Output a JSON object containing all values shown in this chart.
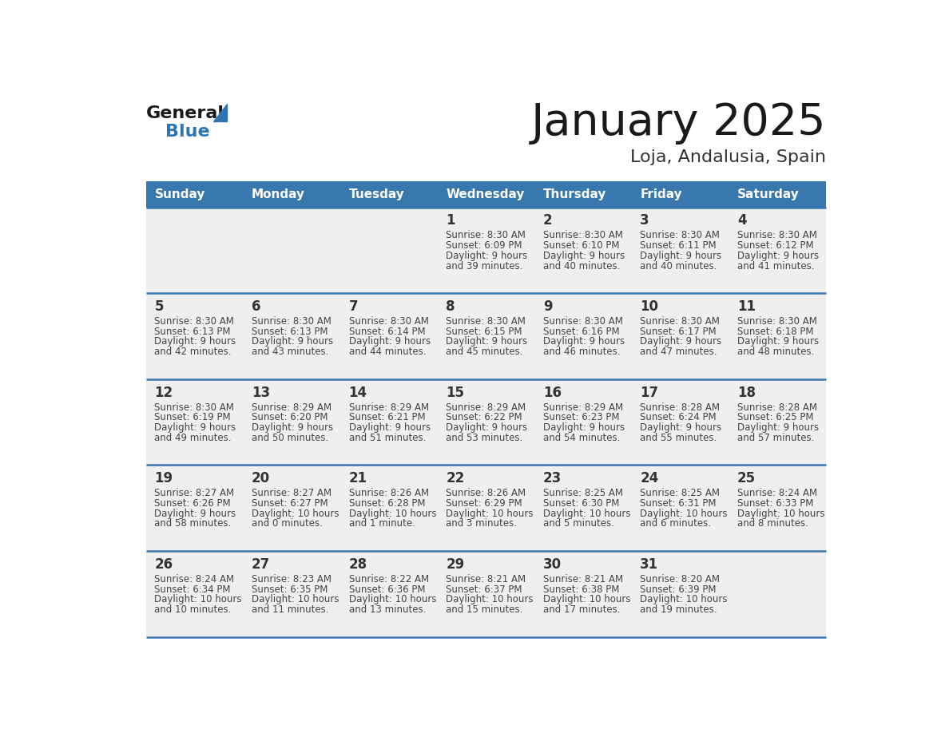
{
  "title": "January 2025",
  "subtitle": "Loja, Andalusia, Spain",
  "header_color": "#3878ae",
  "header_text_color": "#FFFFFF",
  "day_names": [
    "Sunday",
    "Monday",
    "Tuesday",
    "Wednesday",
    "Thursday",
    "Friday",
    "Saturday"
  ],
  "background_color": "#FFFFFF",
  "cell_bg": "#EFEFEF",
  "divider_color": "#3878ae",
  "text_color": "#444444",
  "num_color": "#333333",
  "title_color": "#1a1a1a",
  "subtitle_color": "#333333",
  "logo_general_color": "#1a1a1a",
  "logo_blue_color": "#2E75B6",
  "weeks": [
    [
      {
        "day": null,
        "sunrise": null,
        "sunset": null,
        "daylight": null
      },
      {
        "day": null,
        "sunrise": null,
        "sunset": null,
        "daylight": null
      },
      {
        "day": null,
        "sunrise": null,
        "sunset": null,
        "daylight": null
      },
      {
        "day": 1,
        "sunrise": "8:30 AM",
        "sunset": "6:09 PM",
        "daylight_h": "9 hours",
        "daylight_m": "and 39 minutes."
      },
      {
        "day": 2,
        "sunrise": "8:30 AM",
        "sunset": "6:10 PM",
        "daylight_h": "9 hours",
        "daylight_m": "and 40 minutes."
      },
      {
        "day": 3,
        "sunrise": "8:30 AM",
        "sunset": "6:11 PM",
        "daylight_h": "9 hours",
        "daylight_m": "and 40 minutes."
      },
      {
        "day": 4,
        "sunrise": "8:30 AM",
        "sunset": "6:12 PM",
        "daylight_h": "9 hours",
        "daylight_m": "and 41 minutes."
      }
    ],
    [
      {
        "day": 5,
        "sunrise": "8:30 AM",
        "sunset": "6:13 PM",
        "daylight_h": "9 hours",
        "daylight_m": "and 42 minutes."
      },
      {
        "day": 6,
        "sunrise": "8:30 AM",
        "sunset": "6:13 PM",
        "daylight_h": "9 hours",
        "daylight_m": "and 43 minutes."
      },
      {
        "day": 7,
        "sunrise": "8:30 AM",
        "sunset": "6:14 PM",
        "daylight_h": "9 hours",
        "daylight_m": "and 44 minutes."
      },
      {
        "day": 8,
        "sunrise": "8:30 AM",
        "sunset": "6:15 PM",
        "daylight_h": "9 hours",
        "daylight_m": "and 45 minutes."
      },
      {
        "day": 9,
        "sunrise": "8:30 AM",
        "sunset": "6:16 PM",
        "daylight_h": "9 hours",
        "daylight_m": "and 46 minutes."
      },
      {
        "day": 10,
        "sunrise": "8:30 AM",
        "sunset": "6:17 PM",
        "daylight_h": "9 hours",
        "daylight_m": "and 47 minutes."
      },
      {
        "day": 11,
        "sunrise": "8:30 AM",
        "sunset": "6:18 PM",
        "daylight_h": "9 hours",
        "daylight_m": "and 48 minutes."
      }
    ],
    [
      {
        "day": 12,
        "sunrise": "8:30 AM",
        "sunset": "6:19 PM",
        "daylight_h": "9 hours",
        "daylight_m": "and 49 minutes."
      },
      {
        "day": 13,
        "sunrise": "8:29 AM",
        "sunset": "6:20 PM",
        "daylight_h": "9 hours",
        "daylight_m": "and 50 minutes."
      },
      {
        "day": 14,
        "sunrise": "8:29 AM",
        "sunset": "6:21 PM",
        "daylight_h": "9 hours",
        "daylight_m": "and 51 minutes."
      },
      {
        "day": 15,
        "sunrise": "8:29 AM",
        "sunset": "6:22 PM",
        "daylight_h": "9 hours",
        "daylight_m": "and 53 minutes."
      },
      {
        "day": 16,
        "sunrise": "8:29 AM",
        "sunset": "6:23 PM",
        "daylight_h": "9 hours",
        "daylight_m": "and 54 minutes."
      },
      {
        "day": 17,
        "sunrise": "8:28 AM",
        "sunset": "6:24 PM",
        "daylight_h": "9 hours",
        "daylight_m": "and 55 minutes."
      },
      {
        "day": 18,
        "sunrise": "8:28 AM",
        "sunset": "6:25 PM",
        "daylight_h": "9 hours",
        "daylight_m": "and 57 minutes."
      }
    ],
    [
      {
        "day": 19,
        "sunrise": "8:27 AM",
        "sunset": "6:26 PM",
        "daylight_h": "9 hours",
        "daylight_m": "and 58 minutes."
      },
      {
        "day": 20,
        "sunrise": "8:27 AM",
        "sunset": "6:27 PM",
        "daylight_h": "10 hours",
        "daylight_m": "and 0 minutes."
      },
      {
        "day": 21,
        "sunrise": "8:26 AM",
        "sunset": "6:28 PM",
        "daylight_h": "10 hours",
        "daylight_m": "and 1 minute."
      },
      {
        "day": 22,
        "sunrise": "8:26 AM",
        "sunset": "6:29 PM",
        "daylight_h": "10 hours",
        "daylight_m": "and 3 minutes."
      },
      {
        "day": 23,
        "sunrise": "8:25 AM",
        "sunset": "6:30 PM",
        "daylight_h": "10 hours",
        "daylight_m": "and 5 minutes."
      },
      {
        "day": 24,
        "sunrise": "8:25 AM",
        "sunset": "6:31 PM",
        "daylight_h": "10 hours",
        "daylight_m": "and 6 minutes."
      },
      {
        "day": 25,
        "sunrise": "8:24 AM",
        "sunset": "6:33 PM",
        "daylight_h": "10 hours",
        "daylight_m": "and 8 minutes."
      }
    ],
    [
      {
        "day": 26,
        "sunrise": "8:24 AM",
        "sunset": "6:34 PM",
        "daylight_h": "10 hours",
        "daylight_m": "and 10 minutes."
      },
      {
        "day": 27,
        "sunrise": "8:23 AM",
        "sunset": "6:35 PM",
        "daylight_h": "10 hours",
        "daylight_m": "and 11 minutes."
      },
      {
        "day": 28,
        "sunrise": "8:22 AM",
        "sunset": "6:36 PM",
        "daylight_h": "10 hours",
        "daylight_m": "and 13 minutes."
      },
      {
        "day": 29,
        "sunrise": "8:21 AM",
        "sunset": "6:37 PM",
        "daylight_h": "10 hours",
        "daylight_m": "and 15 minutes."
      },
      {
        "day": 30,
        "sunrise": "8:21 AM",
        "sunset": "6:38 PM",
        "daylight_h": "10 hours",
        "daylight_m": "and 17 minutes."
      },
      {
        "day": 31,
        "sunrise": "8:20 AM",
        "sunset": "6:39 PM",
        "daylight_h": "10 hours",
        "daylight_m": "and 19 minutes."
      },
      {
        "day": null,
        "sunrise": null,
        "sunset": null,
        "daylight_h": null,
        "daylight_m": null
      }
    ]
  ]
}
